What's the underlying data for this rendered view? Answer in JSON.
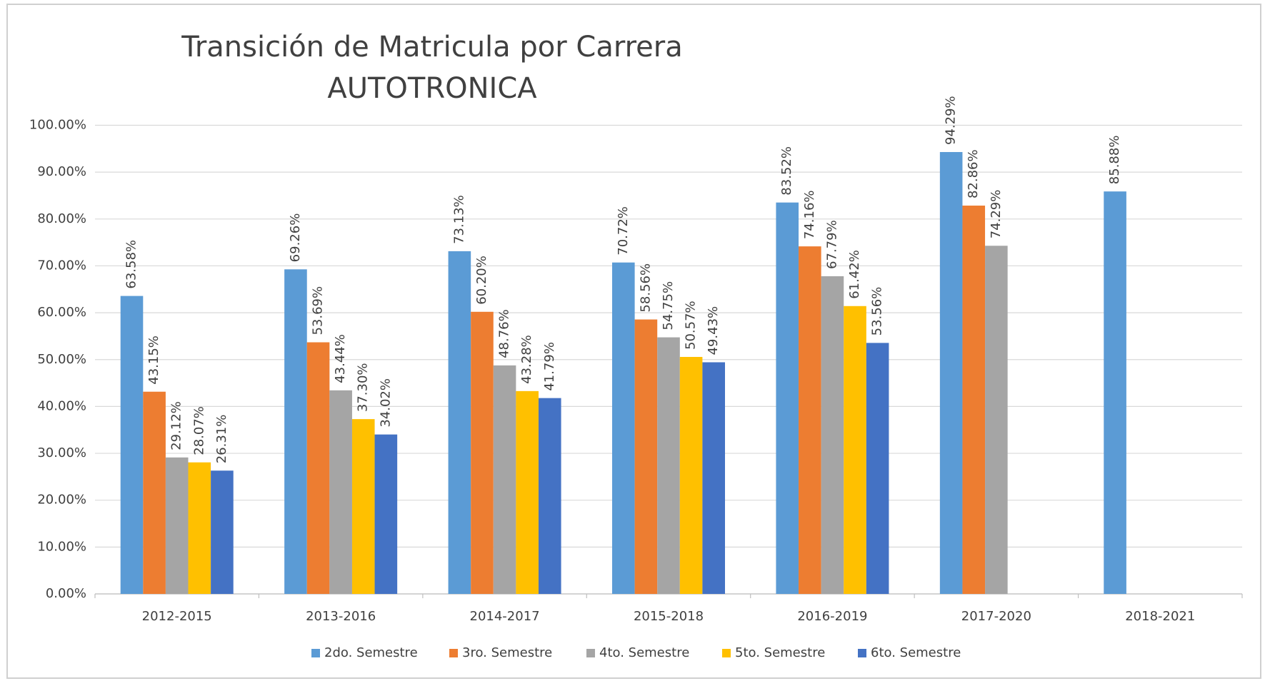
{
  "chart_data": {
    "type": "bar",
    "title": "Transición de Matricula por Carrera",
    "subtitle": "AUTOTRONICA",
    "categories": [
      "2012-2015",
      "2013-2016",
      "2014-2017",
      "2015-2018",
      "2016-2019",
      "2017-2020",
      "2018-2021"
    ],
    "series": [
      {
        "name": "2do. Semestre",
        "color": "#5b9bd5",
        "values": [
          63.58,
          69.26,
          73.13,
          70.72,
          83.52,
          94.29,
          85.88
        ],
        "value_labels": [
          "63.58%",
          "69.26%",
          "73.13%",
          "70.72%",
          "83.52%",
          "94.29%",
          "85.88%"
        ]
      },
      {
        "name": "3ro. Semestre",
        "color": "#ed7d31",
        "values": [
          43.15,
          53.69,
          60.2,
          58.56,
          74.16,
          82.86,
          null
        ],
        "value_labels": [
          "43.15%",
          "53.69%",
          "60.20%",
          "58.56%",
          "74.16%",
          "82.86%",
          null
        ]
      },
      {
        "name": "4to. Semestre",
        "color": "#a5a5a5",
        "values": [
          29.12,
          43.44,
          48.76,
          54.75,
          67.79,
          74.29,
          null
        ],
        "value_labels": [
          "29.12%",
          "43.44%",
          "48.76%",
          "54.75%",
          "67.79%",
          "74.29%",
          null
        ]
      },
      {
        "name": "5to. Semestre",
        "color": "#ffc000",
        "values": [
          28.07,
          37.3,
          43.28,
          50.57,
          61.42,
          null,
          null
        ],
        "value_labels": [
          "28.07%",
          "37.30%",
          "43.28%",
          "50.57%",
          "61.42%",
          null,
          null
        ]
      },
      {
        "name": "6to. Semestre",
        "color": "#4472c4",
        "values": [
          26.31,
          34.02,
          41.79,
          49.43,
          53.56,
          null,
          null
        ],
        "value_labels": [
          "26.31%",
          "34.02%",
          "41.79%",
          "49.43%",
          "53.56%",
          null,
          null
        ]
      }
    ],
    "ylim": [
      0,
      100
    ],
    "yticks": [
      {
        "value": 0,
        "label": "0.00%"
      },
      {
        "value": 10,
        "label": "10.00%"
      },
      {
        "value": 20,
        "label": "20.00%"
      },
      {
        "value": 30,
        "label": "30.00%"
      },
      {
        "value": 40,
        "label": "40.00%"
      },
      {
        "value": 50,
        "label": "50.00%"
      },
      {
        "value": 60,
        "label": "60.00%"
      },
      {
        "value": 70,
        "label": "70.00%"
      },
      {
        "value": 80,
        "label": "80.00%"
      },
      {
        "value": 90,
        "label": "90.00%"
      },
      {
        "value": 100,
        "label": "100.00%"
      }
    ],
    "grid": true,
    "legend": "bottom"
  }
}
